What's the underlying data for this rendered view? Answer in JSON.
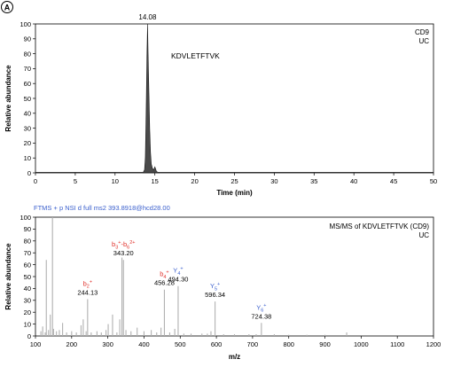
{
  "panel_label": "A",
  "colors": {
    "axis": "#000000",
    "trace": "#4a4a4a",
    "ms_line": "#b0b0b0",
    "b_ion": "#e0302a",
    "y_ion": "#3a5fcd",
    "header_blue": "#3a5fcd",
    "value_text": "#000000"
  },
  "chart_data": [
    {
      "type": "area",
      "name": "chromatogram",
      "xlabel": "Time (min)",
      "ylabel": "Relative abundance",
      "xlim": [
        0,
        50
      ],
      "ylim": [
        0,
        100
      ],
      "xticks": [
        0,
        5,
        10,
        15,
        20,
        25,
        30,
        35,
        40,
        45,
        50
      ],
      "yticks": [
        0,
        10,
        20,
        30,
        40,
        50,
        60,
        70,
        80,
        90,
        100
      ],
      "legend_lines": [
        "CD9",
        "UC"
      ],
      "peak_label": "KDVLETFTVK",
      "apex_label": "14.08",
      "x": [
        13.5,
        13.7,
        13.8,
        13.9,
        14.0,
        14.08,
        14.15,
        14.25,
        14.35,
        14.45,
        14.55,
        14.7,
        14.85,
        15.0,
        15.2,
        15.5
      ],
      "y": [
        0,
        2,
        10,
        40,
        78,
        100,
        80,
        55,
        30,
        14,
        6,
        3,
        2,
        4,
        1,
        0
      ],
      "grid": false
    },
    {
      "type": "bar",
      "name": "msms_spectrum",
      "header": "FTMS + p NSI d full ms2 393.8918@hcd28.00",
      "xlabel": "m/z",
      "ylabel": "Relative abundance",
      "xlim": [
        100,
        1200
      ],
      "ylim": [
        0,
        100
      ],
      "xticks": [
        100,
        200,
        300,
        400,
        500,
        600,
        700,
        800,
        900,
        1000,
        1100,
        1200
      ],
      "yticks": [
        0,
        10,
        20,
        30,
        40,
        50,
        60,
        70,
        80,
        90,
        100
      ],
      "legend_lines": [
        "MS/MS of KDVLETFTVK (CD9)",
        "UC"
      ],
      "peaks": {
        "mz": [
          115,
          120,
          127,
          130,
          136,
          141,
          147,
          150,
          158,
          166,
          175,
          186,
          200,
          213,
          226,
          232,
          240,
          244.13,
          254,
          270,
          282,
          295,
          301,
          313,
          325,
          333,
          339,
          343.2,
          350,
          364,
          381,
          400,
          420,
          435,
          447,
          456.28,
          471,
          485,
          494.3,
          510,
          530,
          560,
          575,
          585,
          596.34,
          620,
          650,
          690,
          710,
          724.38,
          760,
          800,
          850,
          900,
          960
        ],
        "intensity": [
          4,
          8,
          3,
          64,
          5,
          18,
          100,
          6,
          4,
          5,
          11,
          3,
          4,
          3,
          9,
          14,
          4,
          31,
          3,
          4,
          3,
          5,
          10,
          18,
          3,
          14,
          66,
          64,
          5,
          4,
          7,
          4,
          5,
          3,
          7,
          39,
          3,
          6,
          42,
          2,
          2,
          2,
          2,
          4,
          29,
          1.5,
          1.5,
          1.5,
          1.5,
          11,
          1.5,
          1,
          1,
          1,
          3
        ]
      },
      "annotations": [
        {
          "series": "b",
          "label": "b",
          "sub": "2",
          "sup": "+",
          "value": "244.13"
        },
        {
          "series": "b",
          "label": "b",
          "sub": "3",
          "sup": "+",
          "extra_label": "-b",
          "extra_sub": "6",
          "extra_sup": "2+",
          "value": "343.20"
        },
        {
          "series": "b",
          "label": "b",
          "sub": "4",
          "sup": "+",
          "value": "456.28"
        },
        {
          "series": "y",
          "label": "Y",
          "sub": "4",
          "sup": "+",
          "value": "494.30"
        },
        {
          "series": "y",
          "label": "Y",
          "sub": "5",
          "sup": "+",
          "value": "596.34"
        },
        {
          "series": "y",
          "label": "Y",
          "sub": "6",
          "sup": "+",
          "value": "724.38"
        }
      ],
      "grid": false
    }
  ]
}
